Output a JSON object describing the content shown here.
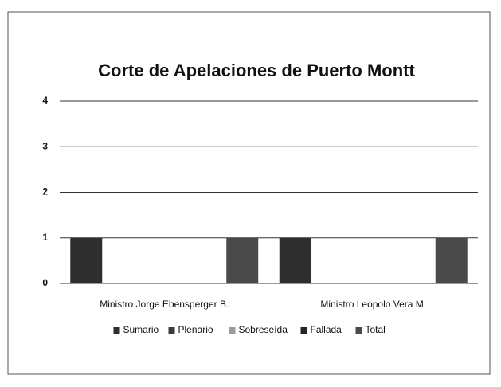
{
  "chart_data": {
    "type": "bar",
    "title": "Corte de Apelaciones de Puerto Montt",
    "categories": [
      "Ministro Jorge Ebensperger B.",
      "Ministro Leopolo Vera M."
    ],
    "series": [
      {
        "name": "Sumario",
        "color": "#2e2e2e",
        "values": [
          1,
          1
        ]
      },
      {
        "name": "Plenario",
        "color": "#3c3c3c",
        "values": [
          0,
          0
        ]
      },
      {
        "name": "Sobreseída",
        "color": "#9a9a9a",
        "values": [
          0,
          0
        ]
      },
      {
        "name": "Fallada",
        "color": "#262626",
        "values": [
          0,
          0
        ]
      },
      {
        "name": "Total",
        "color": "#4a4a4a",
        "values": [
          1,
          1
        ]
      }
    ],
    "ylim": [
      0,
      4
    ],
    "yticks": [
      0,
      1,
      2,
      3,
      4
    ],
    "grid": true,
    "legend": "bottom"
  }
}
